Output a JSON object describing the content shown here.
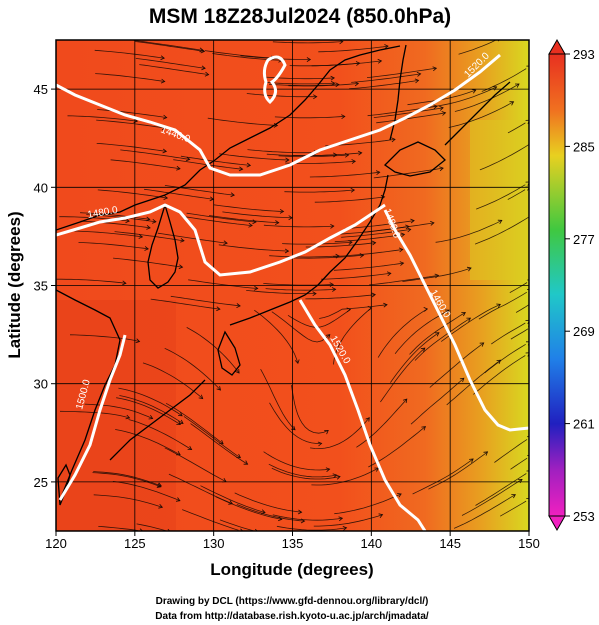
{
  "title": "MSM 18Z28Jul2024 (850.0hPa)",
  "xlabel": "Longitude (degrees)",
  "ylabel": "Latitude  (degrees)",
  "x_ticks": [
    "120",
    "125",
    "130",
    "135",
    "140",
    "145",
    "150"
  ],
  "y_ticks": [
    "25",
    "30",
    "35",
    "40",
    "45"
  ],
  "colorbar_ticks": [
    "293",
    "285",
    "277",
    "269",
    "261",
    "253"
  ],
  "contour_labels": [
    "1440.0",
    "1480.0",
    "1500.0",
    "1520.0",
    "1520.0",
    "1460.0",
    "1480.0"
  ],
  "credits": {
    "line1": "Drawing by DCL (https://www.gfd-dennou.org/library/dcl/)",
    "line2": "Data from http://database.rish.kyoto-u.ac.jp/arch/jmadata/"
  },
  "colors": {
    "field_warm": "#f04a1c",
    "field_orange": "#f06a20",
    "field_yellow": "#d8d820",
    "contour": "#ffffff",
    "coast": "#000000"
  },
  "map_extent": {
    "lon": [
      120,
      150
    ],
    "lat": [
      22.5,
      47.5
    ]
  },
  "colorbar_range": [
    253,
    293
  ]
}
